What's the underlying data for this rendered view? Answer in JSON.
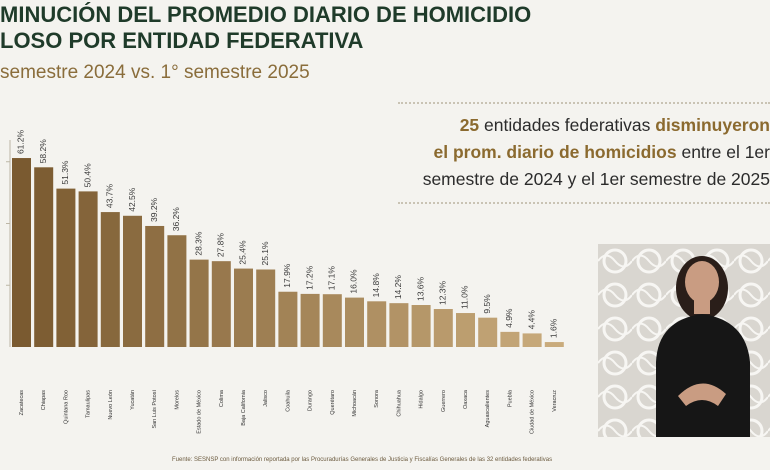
{
  "header": {
    "title_line1": "MINUCIÓN DEL PROMEDIO DIARIO DE HOMICIDIO",
    "title_line2": "LOSO POR ENTIDAD FEDERATIVA",
    "subtitle": "semestre 2024 vs. 1° semestre 2025"
  },
  "callout": {
    "count": "25",
    "text_a": " entidades federativas ",
    "highlight_a": "disminuyeron",
    "highlight_b": "el prom. diario de homicidios",
    "text_b": " entre el 1er",
    "line3": "semestre de 2024 y el 1er semestre de 2025"
  },
  "source": "Fuente: SESNSP con información reportada por las Procuradurías Generales de Justicia y Fiscalías Generales de las 32 entidades federativas",
  "chart_data": {
    "type": "bar",
    "categories": [
      "Zacatecas",
      "Chiapas",
      "Quintana Roo",
      "Tamaulipas",
      "Nuevo León",
      "Yucatán",
      "San Luis Potosí",
      "Morelos",
      "Estado de México",
      "Colima",
      "Baja California",
      "Jalisco",
      "Coahuila",
      "Durango",
      "Querétaro",
      "Michoacán",
      "Sonora",
      "Chihuahua",
      "Hidalgo",
      "Guerrero",
      "Oaxaca",
      "Aguascalientes",
      "Puebla",
      "Ciudad de México",
      "Veracruz"
    ],
    "values": [
      61.2,
      58.2,
      51.3,
      50.4,
      43.7,
      42.5,
      39.2,
      36.2,
      28.3,
      27.8,
      25.4,
      25.1,
      17.9,
      17.2,
      17.1,
      16.0,
      14.8,
      14.2,
      13.6,
      12.3,
      11.0,
      9.5,
      4.9,
      4.4,
      1.6
    ],
    "data_labels": [
      "61.2%",
      "58.2%",
      "51.3%",
      "50.4%",
      "43.7%",
      "42.5%",
      "39.2%",
      "36.2%",
      "28.3%",
      "27.8%",
      "25.4%",
      "25.1%",
      "17.9%",
      "17.2%",
      "17.1%",
      "16.0%",
      "14.8%",
      "14.2%",
      "13.6%",
      "12.3%",
      "11.0%",
      "9.5%",
      "4.9%",
      "4.4%",
      "1.6%"
    ],
    "ylim": [
      0,
      80
    ],
    "grid": false,
    "colors": {
      "bar_dark": "#7a5a30",
      "bar_light": "#c9ab7c",
      "label": "#3a3a3a"
    }
  }
}
